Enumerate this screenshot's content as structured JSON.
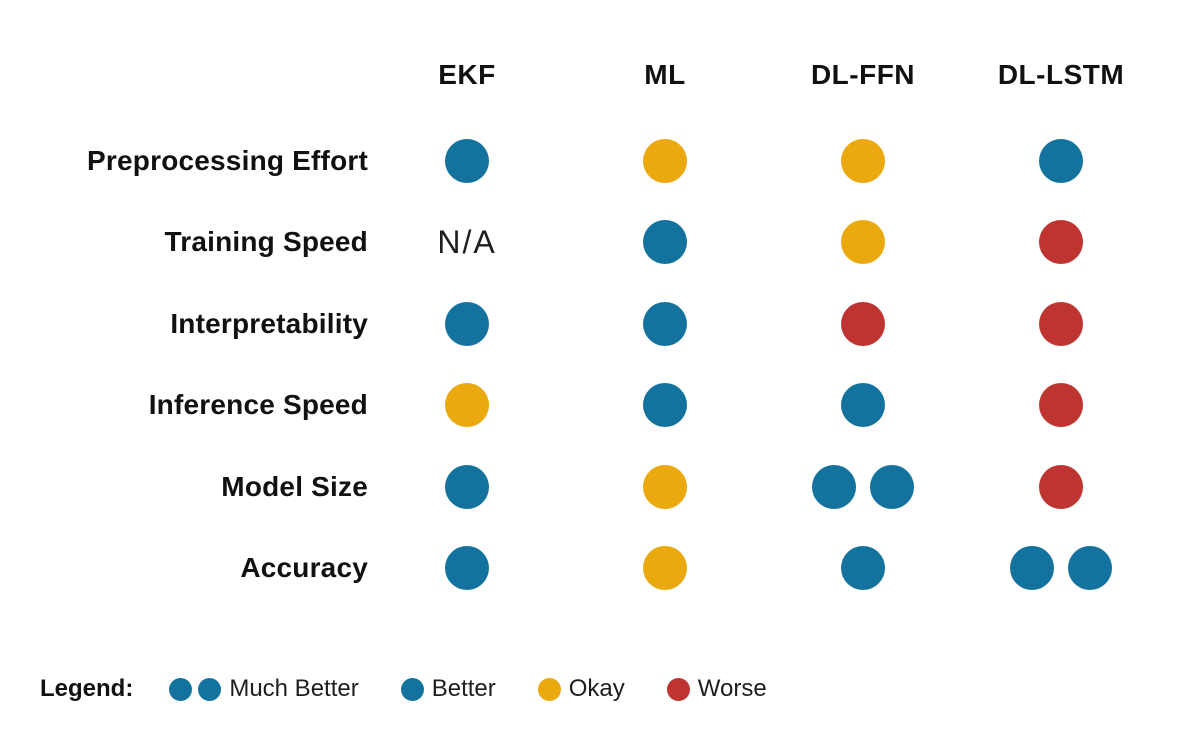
{
  "colors": {
    "blue": "#14739E",
    "yellow": "#EAA90F",
    "red": "#BD3430",
    "text": "#111111"
  },
  "ratings": {
    "Much Better": {
      "dots": 2,
      "color": "blue"
    },
    "Better": {
      "dots": 1,
      "color": "blue"
    },
    "Okay": {
      "dots": 1,
      "color": "yellow"
    },
    "Worse": {
      "dots": 1,
      "color": "red"
    },
    "N/A": {
      "dots": 0
    }
  },
  "chart_data": {
    "type": "table",
    "title": "",
    "columns": [
      "EKF",
      "ML",
      "DL-FFN",
      "DL-LSTM"
    ],
    "rows": [
      "Preprocessing Effort",
      "Training Speed",
      "Interpretability",
      "Inference Speed",
      "Model Size",
      "Accuracy"
    ],
    "values": [
      [
        "Better",
        "Okay",
        "Okay",
        "Better"
      ],
      [
        "N/A",
        "Better",
        "Okay",
        "Worse"
      ],
      [
        "Better",
        "Better",
        "Worse",
        "Worse"
      ],
      [
        "Okay",
        "Better",
        "Better",
        "Worse"
      ],
      [
        "Better",
        "Okay",
        "Much Better",
        "Worse"
      ],
      [
        "Better",
        "Okay",
        "Better",
        "Much Better"
      ]
    ],
    "legend": {
      "title": "Legend:",
      "items": [
        {
          "label": "Much Better"
        },
        {
          "label": "Better"
        },
        {
          "label": "Okay"
        },
        {
          "label": "Worse"
        }
      ]
    }
  }
}
